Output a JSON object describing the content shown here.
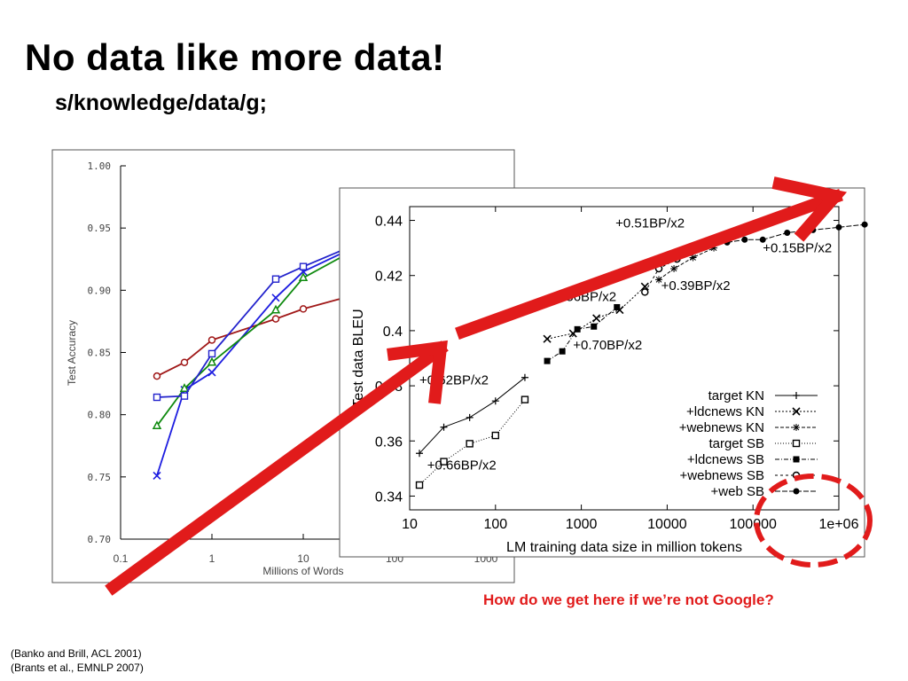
{
  "slide": {
    "title": "No data like more data!",
    "subtitle": "s/knowledge/data/g;",
    "question": "How do we get here if we’re not Google?",
    "citations": [
      "(Banko and Brill, ACL 2001)",
      "(Brants et al., EMNLP 2007)"
    ]
  },
  "colors": {
    "accent_red": "#e11b1b",
    "banko_red": "#a01818",
    "banko_blue_x": "#1d1de0",
    "banko_green": "#0f8a0f",
    "banko_blue_sq": "#2222cc"
  },
  "chart_data": [
    {
      "type": "line",
      "id": "banko-brill",
      "xlabel": "Millions of Words",
      "ylabel": "Test Accuracy",
      "xscale": "log",
      "xlim": [
        0.1,
        1000
      ],
      "ylim": [
        0.7,
        1.0
      ],
      "x_ticks": [
        {
          "v": 0.1,
          "label": "0.1"
        },
        {
          "v": 1,
          "label": "1"
        },
        {
          "v": 10,
          "label": "10"
        },
        {
          "v": 100,
          "label": "100"
        },
        {
          "v": 1000,
          "label": "1000"
        }
      ],
      "y_ticks": [
        {
          "v": 0.7,
          "label": "0.70"
        },
        {
          "v": 0.75,
          "label": "0.75"
        },
        {
          "v": 0.8,
          "label": "0.80"
        },
        {
          "v": 0.85,
          "label": "0.85"
        },
        {
          "v": 0.9,
          "label": "0.90"
        },
        {
          "v": 0.95,
          "label": "0.95"
        },
        {
          "v": 1.0,
          "label": "1.00"
        }
      ],
      "series": [
        {
          "color": "#a01818",
          "marker": "circle",
          "x": [
            0.25,
            0.5,
            1,
            5,
            10,
            100
          ],
          "y": [
            0.831,
            0.842,
            0.86,
            0.877,
            0.885,
            0.905
          ]
        },
        {
          "color": "#1d1de0",
          "marker": "x",
          "x": [
            0.25,
            0.5,
            1,
            5,
            10,
            100
          ],
          "y": [
            0.751,
            0.82,
            0.834,
            0.894,
            0.915,
            0.95
          ]
        },
        {
          "color": "#0f8a0f",
          "marker": "triangle",
          "x": [
            0.25,
            0.5,
            1,
            5,
            10,
            100
          ],
          "y": [
            0.791,
            0.821,
            0.842,
            0.884,
            0.91,
            0.95
          ]
        },
        {
          "color": "#2222cc",
          "marker": "square",
          "x": [
            0.25,
            0.5,
            1,
            5,
            10,
            100
          ],
          "y": [
            0.814,
            0.815,
            0.849,
            0.909,
            0.919,
            0.95
          ]
        }
      ]
    },
    {
      "type": "line",
      "id": "brants-lm",
      "xlabel": "LM training data size in million tokens",
      "ylabel": "Test data BLEU",
      "xscale": "log",
      "xlim": [
        10,
        1000000
      ],
      "ylim": [
        0.335,
        0.445
      ],
      "x_ticks": [
        {
          "v": 10,
          "label": "10"
        },
        {
          "v": 100,
          "label": "100"
        },
        {
          "v": 1000,
          "label": "1000"
        },
        {
          "v": 10000,
          "label": "10000"
        },
        {
          "v": 100000,
          "label": "100000"
        },
        {
          "v": 1000000,
          "label": "1e+06"
        }
      ],
      "y_ticks": [
        {
          "v": 0.34,
          "label": "0.34"
        },
        {
          "v": 0.36,
          "label": "0.36"
        },
        {
          "v": 0.38,
          "label": "0.38"
        },
        {
          "v": 0.4,
          "label": "0.4"
        },
        {
          "v": 0.42,
          "label": "0.42"
        },
        {
          "v": 0.44,
          "label": "0.44"
        }
      ],
      "series": [
        {
          "name": "target KN",
          "marker": "plus",
          "dash": "",
          "x": [
            13,
            25,
            50,
            100,
            220
          ],
          "y": [
            0.3555,
            0.365,
            0.3685,
            0.3745,
            0.383
          ]
        },
        {
          "name": "+ldcnews KN",
          "marker": "x",
          "dash": "2,2",
          "x": [
            400,
            800,
            1500,
            2800,
            5500
          ],
          "y": [
            0.397,
            0.399,
            0.4045,
            0.4075,
            0.416
          ]
        },
        {
          "name": "+webnews KN",
          "marker": "asterisk",
          "dash": "4,2",
          "x": [
            8000,
            12000,
            20000,
            35000
          ],
          "y": [
            0.4185,
            0.4225,
            0.4265,
            0.43
          ]
        },
        {
          "name": "target SB",
          "marker": "open-square",
          "dash": "1,2",
          "x": [
            13,
            25,
            50,
            100,
            220
          ],
          "y": [
            0.344,
            0.3525,
            0.359,
            0.362,
            0.375
          ]
        },
        {
          "name": "+ldcnews SB",
          "marker": "filled-square",
          "dash": "5,2,1,2",
          "x": [
            400,
            600,
            900,
            1400,
            2600
          ],
          "y": [
            0.389,
            0.3925,
            0.4005,
            0.4015,
            0.4085
          ]
        },
        {
          "name": "+webnews SB",
          "marker": "open-circle",
          "dash": "3,3",
          "x": [
            5500,
            8000,
            13000,
            22000
          ],
          "y": [
            0.414,
            0.4225,
            0.426,
            0.43
          ]
        },
        {
          "name": "+web SB",
          "marker": "filled-circle",
          "dash": "6,2",
          "x": [
            50000,
            80000,
            130000,
            250000,
            500000,
            1000000,
            2000000
          ],
          "y": [
            0.432,
            0.433,
            0.433,
            0.4355,
            0.4365,
            0.4375,
            0.4385
          ]
        }
      ],
      "annotations": [
        {
          "text": "+0.51BP/x2",
          "x": 2500,
          "y": 0.4375
        },
        {
          "text": "+0.15BP/x2",
          "x": 130000,
          "y": 0.4285
        },
        {
          "text": "+0.39BP/x2",
          "x": 8500,
          "y": 0.4147
        },
        {
          "text": "+0.56BP/x2",
          "x": 400,
          "y": 0.4107
        },
        {
          "text": "+0.70BP/x2",
          "x": 800,
          "y": 0.3932
        },
        {
          "text": "+0.62BP/x2",
          "x": 13,
          "y": 0.3805
        },
        {
          "text": "+0.66BP/x2",
          "x": 16,
          "y": 0.3497
        }
      ]
    }
  ]
}
